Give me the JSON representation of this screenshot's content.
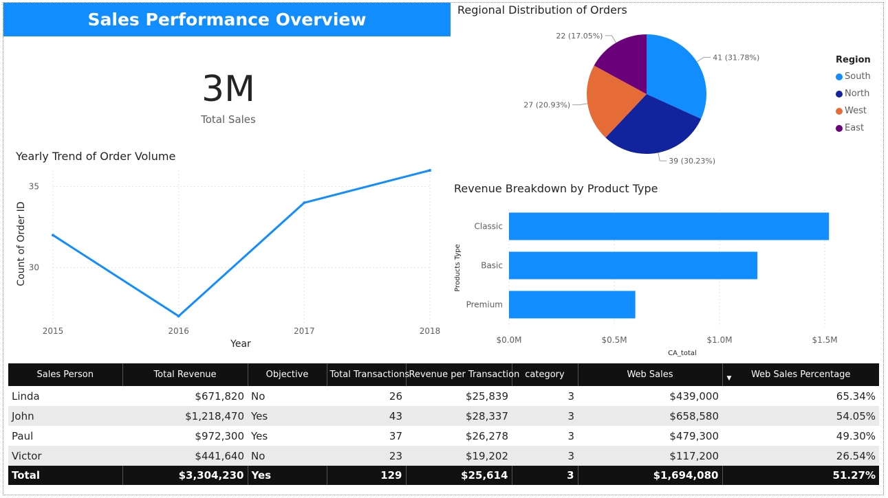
{
  "header": {
    "title": "Sales Performance Overview"
  },
  "kpi": {
    "value": "3M",
    "label": "Total Sales"
  },
  "colors": {
    "accent": "#118dff",
    "south": "#118dff",
    "north": "#12239e",
    "west": "#e66c37",
    "east": "#6b007b"
  },
  "chart_data": [
    {
      "type": "line",
      "title": "Yearly Trend of Order Volume",
      "xlabel": "Year",
      "ylabel": "Count of Order ID",
      "x": [
        "2015",
        "2016",
        "2017",
        "2018"
      ],
      "series": [
        {
          "values": [
            32,
            27,
            34,
            36
          ]
        }
      ],
      "ylim": [
        26.5,
        36
      ],
      "yticks": [
        "30",
        "35"
      ],
      "grid": true
    },
    {
      "type": "pie",
      "title": "Regional Distribution of Orders",
      "legend_title": "Region",
      "legend_position": "right",
      "slices": [
        {
          "name": "South",
          "value": 41,
          "label": "41 (31.78%)",
          "color": "#118dff"
        },
        {
          "name": "North",
          "value": 39,
          "label": "39 (30.23%)",
          "color": "#12239e"
        },
        {
          "name": "West",
          "value": 27,
          "label": "27 (20.93%)",
          "color": "#e66c37"
        },
        {
          "name": "East",
          "value": 22,
          "label": "22 (17.05%)",
          "color": "#6b007b"
        }
      ]
    },
    {
      "type": "bar",
      "orientation": "horizontal",
      "title": "Revenue Breakdown by Product Type",
      "xlabel": "CA_total",
      "ylabel": "Products Type",
      "categories": [
        "Classic",
        "Basic",
        "Premium"
      ],
      "values": [
        1520000,
        1180000,
        600000
      ],
      "xlim": [
        0,
        1650000
      ],
      "xticks": [
        "$0.0M",
        "$0.5M",
        "$1.0M",
        "$1.5M"
      ],
      "grid": true
    }
  ],
  "table": {
    "columns": [
      "Sales Person",
      "Total Revenue",
      "Objective",
      "Total Transactions",
      "Revenue per Transaction",
      "category",
      "Web Sales",
      "Web Sales Percentage"
    ],
    "rows": [
      [
        "Linda",
        "$671,820",
        "No",
        "26",
        "$25,839",
        "3",
        "$439,000",
        "65.34%"
      ],
      [
        "John",
        "$1,218,470",
        "Yes",
        "43",
        "$28,337",
        "3",
        "$658,580",
        "54.05%"
      ],
      [
        "Paul",
        "$972,300",
        "Yes",
        "37",
        "$26,278",
        "3",
        "$479,300",
        "49.30%"
      ],
      [
        "Victor",
        "$441,640",
        "No",
        "23",
        "$19,202",
        "3",
        "$117,200",
        "26.54%"
      ]
    ],
    "total": [
      "Total",
      "$3,304,230",
      "Yes",
      "129",
      "$25,614",
      "3",
      "$1,694,080",
      "51.27%"
    ]
  }
}
